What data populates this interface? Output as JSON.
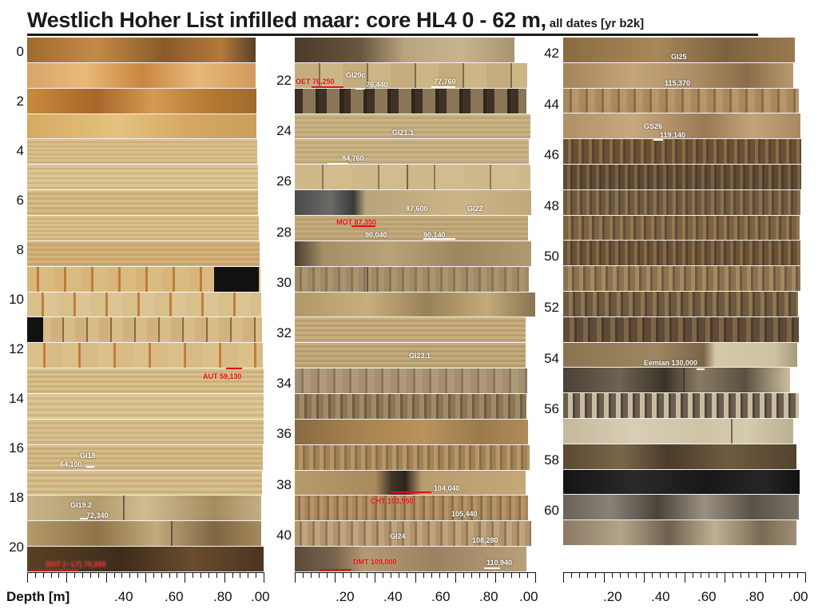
{
  "figure": {
    "title": "Westlich Hoher List infilled maar: core HL4   0 - 62 m,",
    "title_note": "all dates [yr b2k]"
  },
  "axis": {
    "xlabel": "Depth [m]",
    "ticks": [
      ".40",
      ".60",
      ".80",
      ".00",
      ".20",
      ".40",
      ".60",
      ".80",
      ".00",
      ".20",
      ".40",
      ".60",
      ".80",
      ".00"
    ]
  },
  "columns": [
    {
      "id": "col1",
      "depth_labels": [
        "0",
        "2",
        "4",
        "6",
        "8",
        "10",
        "12",
        "14",
        "16",
        "18",
        "20"
      ],
      "segments": [
        {
          "bg": "linear-gradient(90deg,#a06a2e,#c48a48 30%,#8a5a28 60%,#b27a3a 85%,#5a4028)"
        },
        {
          "bg": "linear-gradient(90deg,#d7a567,#e9b97a 25%,#c9863f 50%,#e7b879 75%,#d09a5c)"
        },
        {
          "bg": "linear-gradient(90deg,#c98a3c,#a8662a 30%,#d49a52 55%,#b57833 80%,#a06a30)"
        },
        {
          "bg": "linear-gradient(90deg,#d6aa62,#e4c27e 40%,#d4a862 70%,#caa05c)"
        },
        {
          "bg": "repeating-linear-gradient(180deg,#d8bf8a 0 3px,#cbb07a 3px 5px)"
        },
        {
          "bg": "repeating-linear-gradient(180deg,#dcc592 0 4px,#ccb37e 4px 6px)"
        },
        {
          "bg": "repeating-linear-gradient(180deg,#d6bd88 0 3px,#c9ad78 3px 6px)"
        },
        {
          "bg": "repeating-linear-gradient(180deg,#dcc08a 0 3px,#cdb07a 3px 5px)"
        },
        {
          "bg": "repeating-linear-gradient(180deg,#d4b47c 0 3px,#c8a46a 3px 6px)"
        },
        {
          "bg": "repeating-linear-gradient(90deg,#d8b478 0 12px,#c07a38 12px 15px,#d9bb82 15px 34px)"
        },
        {
          "bg": "repeating-linear-gradient(90deg,#d9bf8c 0 18px,#c0803e 18px 21px,#dcc594 21px 40px)"
        },
        {
          "bg": "repeating-linear-gradient(90deg,#d2b27c 0 14px,#8a6a44 14px 16px,#d8bc88 16px 30px)"
        },
        {
          "bg": "repeating-linear-gradient(90deg,#dcc08a 0 20px,#c47c3c 20px 23px,#d8bb84 23px 44px)"
        },
        {
          "bg": "repeating-linear-gradient(180deg,#dac28e 0 3px,#cab07c 3px 6px)"
        },
        {
          "bg": "repeating-linear-gradient(180deg,#dcc694 0 4px,#cfb684 4px 7px)"
        },
        {
          "bg": "repeating-linear-gradient(180deg,#d9c08c 0 3px,#ccb27e 3px 6px)"
        },
        {
          "bg": "repeating-linear-gradient(180deg,#d6bc88 0 3px,#c8ac78 3px 6px)"
        },
        {
          "bg": "repeating-linear-gradient(180deg,#d8c08e 0 4px,#c9af7c 4px 7px)"
        },
        {
          "bg": "linear-gradient(90deg,#c8b48a,#b39a6c 30%,#d0bc92 50%,#a58c60 80%,#c4ae84)"
        },
        {
          "bg": "linear-gradient(90deg,#b49a6a,#8e7448 30%,#c2aa7c 55%,#7e6642 80%,#a48a5c)"
        },
        {
          "bg": "linear-gradient(90deg,#5a4026,#3e2c1c 40%,#6a4c2e 70%,#4a3420)"
        }
      ],
      "annotations": [
        {
          "text": "AUT 59,130",
          "color": "red"
        },
        {
          "text": "GI18",
          "color": "white"
        },
        {
          "text": "64,100",
          "color": "white"
        },
        {
          "text": "GI19.2",
          "color": "white"
        },
        {
          "text": "72,340",
          "color": "white"
        },
        {
          "text": "SMT (~ LT) 70,590",
          "color": "red"
        }
      ]
    },
    {
      "id": "col2",
      "depth_labels": [
        "22",
        "24",
        "26",
        "28",
        "30",
        "32",
        "34",
        "36",
        "38",
        "40"
      ],
      "segments": [
        {
          "bg": "linear-gradient(90deg,#4a3a28,#6a5640 30%,#b8a47e 50%,#c8b48e 75%,#a89470)"
        },
        {
          "bg": "repeating-linear-gradient(90deg,#c4ac7c 0 30px,#7e6a4c 30px 32px,#cdb686 32px 60px)"
        },
        {
          "bg": "repeating-linear-gradient(90deg,#3e3224 0 10px,#8a7656 10px 26px,#2e261c 26px 30px)"
        },
        {
          "bg": "repeating-linear-gradient(180deg,#cab486 0 3px,#bca678 3px 6px)"
        },
        {
          "bg": "repeating-linear-gradient(180deg,#ccb688 0 3px,#bea87a 3px 6px)"
        },
        {
          "bg": "repeating-linear-gradient(90deg,#cfb98a 0 34px,#8a7656 34px 36px,#d2bc8e 36px 70px)"
        },
        {
          "bg": "linear-gradient(90deg,#4a4a4a,#6a6a66 15%,#3a3a3a 25%,#b8a47c 30%,#cbb587 70%,#bfa97c)"
        },
        {
          "bg": "repeating-linear-gradient(180deg,#c4ac7e 0 3px,#b69e70 3px 6px)"
        },
        {
          "bg": "linear-gradient(90deg,#4a3e2c,#a48e66 12%,#b8a276 40%,#9c8660 70%,#b09a70)"
        },
        {
          "bg": "repeating-linear-gradient(90deg,#9e8a66 0 6px,#8a7452 6px 9px,#a8946e 9px 16px)"
        },
        {
          "bg": "linear-gradient(90deg,#b09868,#c6ae7e 30%,#9a8258 55%,#c2aa7a 80%,#8a7450)"
        },
        {
          "bg": "repeating-linear-gradient(180deg,#c8b080 0 3px,#b89e6e 3px 6px)"
        },
        {
          "bg": "repeating-linear-gradient(180deg,#c4ac7e 0 3px,#b49c6e 3px 6px)"
        },
        {
          "bg": "repeating-linear-gradient(90deg,#a49070 0 8px,#8c7656 8px 11px,#ae9a78 11px 20px)"
        },
        {
          "bg": "repeating-linear-gradient(90deg,#8a7656 0 6px,#a08a66 6px 12px,#6e5c42 12px 15px)"
        },
        {
          "bg": "linear-gradient(90deg,#8a6a44,#a8844e 30%,#b8945c 55%,#9a7a4c 80%,#b08c58)"
        },
        {
          "bg": "repeating-linear-gradient(90deg,#a08256 0 5px,#b8966a 5px 10px,#8a6e48 10px 13px)"
        },
        {
          "bg": "linear-gradient(90deg,#b89a6a,#a88a5c 35%,#3e3428 42%,#2e261e 48%,#b89c6c 55%,#c4a878)"
        },
        {
          "bg": "repeating-linear-gradient(90deg,#a8885a 0 4px,#8c6e48 4px 7px,#b4946a 7px 12px)"
        },
        {
          "bg": "repeating-linear-gradient(90deg,#b09470 0 6px,#947856 6px 9px,#c0a47c 9px 16px)"
        },
        {
          "bg": "linear-gradient(90deg,#5a4a38,#7a6650 18%,#b49a70 30%,#9c8260 60%,#b8a078)"
        }
      ],
      "annotations": [
        {
          "text": "OET 76,250",
          "color": "red"
        },
        {
          "text": "GI20c",
          "color": "white"
        },
        {
          "text": "76,440",
          "color": "white"
        },
        {
          "text": "77,760",
          "color": "white"
        },
        {
          "text": "GI21.1",
          "color": "white"
        },
        {
          "text": "84,760",
          "color": "white"
        },
        {
          "text": "87,600",
          "color": "white"
        },
        {
          "text": "GI22",
          "color": "white"
        },
        {
          "text": "MOT 87,350",
          "color": "red"
        },
        {
          "text": "90,040",
          "color": "white"
        },
        {
          "text": "90,140",
          "color": "white"
        },
        {
          "text": "GI23.1",
          "color": "white"
        },
        {
          "text": "104,040",
          "color": "white"
        },
        {
          "text": "CHT 103,950",
          "color": "red"
        },
        {
          "text": "105,440",
          "color": "white"
        },
        {
          "text": "GI24",
          "color": "white"
        },
        {
          "text": "108,280",
          "color": "white"
        },
        {
          "text": "DMT 109,000",
          "color": "red"
        },
        {
          "text": "110,940",
          "color": "white"
        }
      ]
    },
    {
      "id": "col3",
      "depth_labels": [
        "42",
        "44",
        "46",
        "48",
        "50",
        "52",
        "54",
        "56",
        "58",
        "60"
      ],
      "segments": [
        {
          "bg": "linear-gradient(90deg,#8a6a40,#a8885a 40%,#7e6240 70%,#9a7a4e)"
        },
        {
          "bg": "linear-gradient(90deg,#a4845a,#c4a478 30%,#b09068 55%,#8a6e4a 80%,#b89a70)"
        },
        {
          "bg": "repeating-linear-gradient(90deg,#a8885e 0 8px,#8a6c48 8px 11px,#b6966a 11px 20px)"
        },
        {
          "bg": "linear-gradient(90deg,#b09068,#c8a87e 30%,#9a7a56 60%,#c4a47a 80%,#a88a62)"
        },
        {
          "bg": "repeating-linear-gradient(90deg,#6a5034 0 6px,#8a6c46 6px 10px,#5a4430 10px 13px)"
        },
        {
          "bg": "repeating-linear-gradient(90deg,#5e4a34 0 5px,#7a6244 5px 9px,#4e3c2a 9px 12px)"
        },
        {
          "bg": "repeating-linear-gradient(90deg,#6e5a40 0 5px,#8a7250 5px 9px,#5a4834 9px 12px)"
        },
        {
          "bg": "repeating-linear-gradient(90deg,#7a6244 0 6px,#94784e 6px 10px,#5e4a34 10px 13px)"
        },
        {
          "bg": "repeating-linear-gradient(90deg,#6a5238 0 5px,#866a46 5px 9px,#54422e 9px 12px)"
        },
        {
          "bg": "repeating-linear-gradient(90deg,#8a7250 0 6px,#a48a60 6px 11px,#6e5a40 11px 14px)"
        },
        {
          "bg": "repeating-linear-gradient(90deg,#6e5a40 0 7px,#8e7652 7px 12px,#564430 12px 15px)"
        },
        {
          "bg": "repeating-linear-gradient(90deg,#5e4a36 0 8px,#7e6648 8px 14px,#4a3a2a 14px 17px)"
        },
        {
          "bg": "linear-gradient(90deg,#8a7450,#9e8660 40%,#7a6448 60%,#d4c8a8 65%,#cec2a2 90%,#a89a7a)"
        },
        {
          "bg": "linear-gradient(90deg,#4a4238,#6e6250 25%,#3a3428 45%,#8a7a62 60%,#5a5040 80%,#ccc0a0)"
        },
        {
          "bg": "repeating-linear-gradient(90deg,#6a5e4c 0 6px,#c8bca0 6px 12px,#4e4438 12px 15px)"
        },
        {
          "bg": "linear-gradient(90deg,#c4b89c,#d8ceb4 30%,#cfc4a8 60%,#d4caae 80%,#bdb092)"
        },
        {
          "bg": "linear-gradient(90deg,#5a4a34,#7a6648 25%,#4a3c2a 45%,#6e5a40 70%,#54442e)"
        },
        {
          "bg": "linear-gradient(90deg,#141414,#2a2a2a 30%,#181818 60%,#262626 85%,#101010)"
        },
        {
          "bg": "linear-gradient(90deg,#6a6258,#8a8276 20%,#4a443c 40%,#9a9080 60%,#5a5248 80%,#7a7266)"
        },
        {
          "bg": "linear-gradient(90deg,#8a7a64,#b4a48a 25%,#6e604e 45%,#c0b092 65%,#7a6a54 85%,#9e8e74)"
        }
      ],
      "annotations": [
        {
          "text": "GI25",
          "color": "white"
        },
        {
          "text": "115,370",
          "color": "white"
        },
        {
          "text": "GS26",
          "color": "white"
        },
        {
          "text": "119,140",
          "color": "white"
        },
        {
          "text": "Eemian 130,000",
          "color": "white"
        }
      ]
    }
  ]
}
